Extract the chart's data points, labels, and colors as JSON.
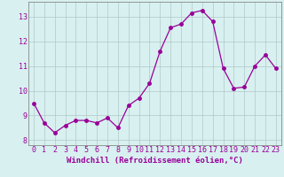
{
  "x": [
    0,
    1,
    2,
    3,
    4,
    5,
    6,
    7,
    8,
    9,
    10,
    11,
    12,
    13,
    14,
    15,
    16,
    17,
    18,
    19,
    20,
    21,
    22,
    23
  ],
  "y": [
    9.5,
    8.7,
    8.3,
    8.6,
    8.8,
    8.8,
    8.7,
    8.9,
    8.5,
    9.4,
    9.7,
    10.3,
    11.6,
    12.55,
    12.7,
    13.15,
    13.25,
    12.8,
    10.9,
    10.1,
    10.15,
    11.0,
    11.45,
    10.9
  ],
  "line_color": "#990099",
  "marker": "o",
  "bg_color": "#d8f0f0",
  "grid_color": "#b0c8c8",
  "xlabel": "Windchill (Refroidissement éolien,°C)",
  "xlim": [
    -0.5,
    23.5
  ],
  "ylim": [
    7.8,
    13.6
  ],
  "yticks": [
    8,
    9,
    10,
    11,
    12,
    13
  ],
  "xticks": [
    0,
    1,
    2,
    3,
    4,
    5,
    6,
    7,
    8,
    9,
    10,
    11,
    12,
    13,
    14,
    15,
    16,
    17,
    18,
    19,
    20,
    21,
    22,
    23
  ],
  "label_color": "#990099",
  "tick_color": "#990099",
  "font": "monospace",
  "axis_fontsize": 6.5,
  "tick_fontsize": 6.0,
  "marker_size": 2.5,
  "line_width": 0.9
}
